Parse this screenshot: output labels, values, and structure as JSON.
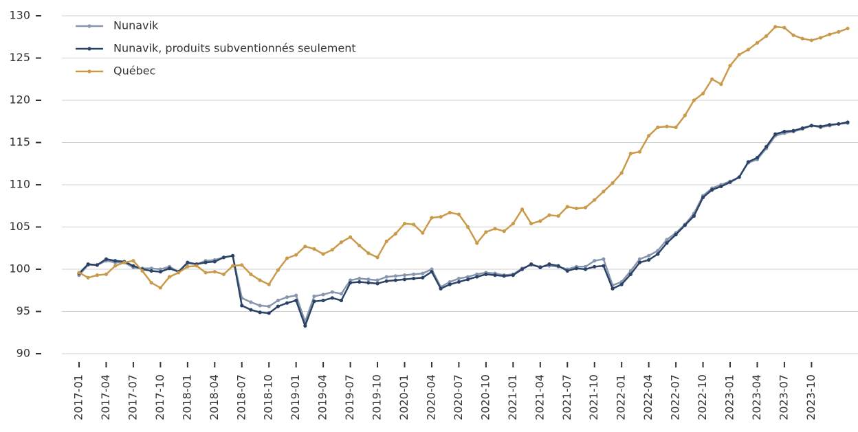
{
  "chart_data": {
    "type": "line",
    "categories": [
      "2017-01",
      null,
      null,
      "2017-04",
      null,
      null,
      "2017-07",
      null,
      null,
      "2017-10",
      null,
      null,
      "2018-01",
      null,
      null,
      "2018-04",
      null,
      null,
      "2018-07",
      null,
      null,
      "2018-10",
      null,
      null,
      "2019-01",
      null,
      null,
      "2019-04",
      null,
      null,
      "2019-07",
      null,
      null,
      "2019-10",
      null,
      null,
      "2020-01",
      null,
      null,
      "2020-04",
      null,
      null,
      "2020-07",
      null,
      null,
      "2020-10",
      null,
      null,
      "2021-01",
      null,
      null,
      "2021-04",
      null,
      null,
      "2021-07",
      null,
      null,
      "2021-10",
      null,
      null,
      "2022-01",
      null,
      null,
      "2022-04",
      null,
      null,
      "2022-07",
      null,
      null,
      "2022-10",
      null,
      null,
      "2023-01",
      null,
      null,
      "2023-04",
      null,
      null,
      "2023-07",
      null,
      null,
      "2023-10",
      null,
      null,
      null,
      null
    ],
    "series": [
      {
        "name": "Nunavik",
        "color": "#8796ad",
        "values": [
          99.3,
          100.5,
          100.5,
          101.0,
          100.8,
          100.8,
          100.2,
          100.1,
          100.1,
          100.0,
          100.3,
          99.7,
          100.7,
          100.6,
          101.0,
          101.1,
          101.4,
          101.6,
          96.6,
          96.1,
          95.7,
          95.6,
          96.3,
          96.7,
          96.9,
          93.8,
          96.8,
          97.0,
          97.3,
          97.1,
          98.7,
          98.9,
          98.8,
          98.7,
          99.1,
          99.2,
          99.3,
          99.4,
          99.5,
          100.0,
          97.9,
          98.5,
          98.9,
          99.1,
          99.4,
          99.6,
          99.5,
          99.3,
          99.4,
          100.1,
          100.5,
          100.3,
          100.4,
          100.3,
          100.0,
          100.3,
          100.3,
          101.0,
          101.2,
          98.1,
          98.5,
          99.8,
          101.2,
          101.6,
          102.2,
          103.5,
          104.3,
          105.3,
          106.6,
          108.7,
          109.6,
          110.0,
          110.4,
          110.9,
          112.6,
          113.0,
          114.3,
          115.8,
          116.1,
          116.3,
          116.6,
          117.0,
          116.8,
          117.0,
          117.2,
          117.3
        ]
      },
      {
        "name": "Nunavik, produits subventionnés seulement",
        "color": "#2a4266",
        "values": [
          99.5,
          100.6,
          100.5,
          101.2,
          101.0,
          100.9,
          100.4,
          100.0,
          99.8,
          99.7,
          100.1,
          99.7,
          100.8,
          100.6,
          100.8,
          100.9,
          101.4,
          101.6,
          95.7,
          95.2,
          94.9,
          94.8,
          95.6,
          96.0,
          96.3,
          93.3,
          96.2,
          96.3,
          96.6,
          96.3,
          98.4,
          98.5,
          98.4,
          98.3,
          98.6,
          98.7,
          98.8,
          98.9,
          99.0,
          99.7,
          97.7,
          98.2,
          98.5,
          98.8,
          99.1,
          99.4,
          99.3,
          99.2,
          99.3,
          100.0,
          100.6,
          100.2,
          100.6,
          100.4,
          99.8,
          100.1,
          100.0,
          100.3,
          100.4,
          97.7,
          98.2,
          99.4,
          100.8,
          101.1,
          101.8,
          103.1,
          104.1,
          105.2,
          106.3,
          108.5,
          109.4,
          109.8,
          110.3,
          110.9,
          112.7,
          113.2,
          114.5,
          116.0,
          116.3,
          116.4,
          116.7,
          117.0,
          116.9,
          117.1,
          117.2,
          117.4
        ]
      },
      {
        "name": "Québec",
        "color": "#c99a49",
        "values": [
          99.6,
          99.0,
          99.3,
          99.4,
          100.4,
          100.8,
          101.0,
          99.8,
          98.4,
          97.8,
          99.1,
          99.6,
          100.3,
          100.4,
          99.6,
          99.7,
          99.4,
          100.4,
          100.5,
          99.4,
          98.7,
          98.2,
          99.9,
          101.3,
          101.7,
          102.7,
          102.4,
          101.8,
          102.3,
          103.2,
          103.8,
          102.8,
          101.9,
          101.4,
          103.3,
          104.2,
          105.4,
          105.3,
          104.3,
          106.1,
          106.2,
          106.7,
          106.5,
          105.0,
          103.1,
          104.4,
          104.8,
          104.5,
          105.4,
          107.1,
          105.4,
          105.7,
          106.4,
          106.3,
          107.4,
          107.2,
          107.3,
          108.2,
          109.2,
          110.2,
          111.4,
          113.7,
          113.9,
          115.8,
          116.8,
          116.9,
          116.8,
          118.2,
          120.0,
          120.8,
          122.5,
          121.9,
          124.1,
          125.4,
          126.0,
          126.8,
          127.6,
          128.7,
          128.6,
          127.7,
          127.3,
          127.1,
          127.4,
          127.8,
          128.1,
          128.5
        ]
      }
    ],
    "ylim": [
      90,
      130
    ],
    "yticks": [
      90,
      95,
      100,
      105,
      110,
      115,
      120,
      125,
      130
    ],
    "grid": true,
    "legend": "upper left"
  }
}
